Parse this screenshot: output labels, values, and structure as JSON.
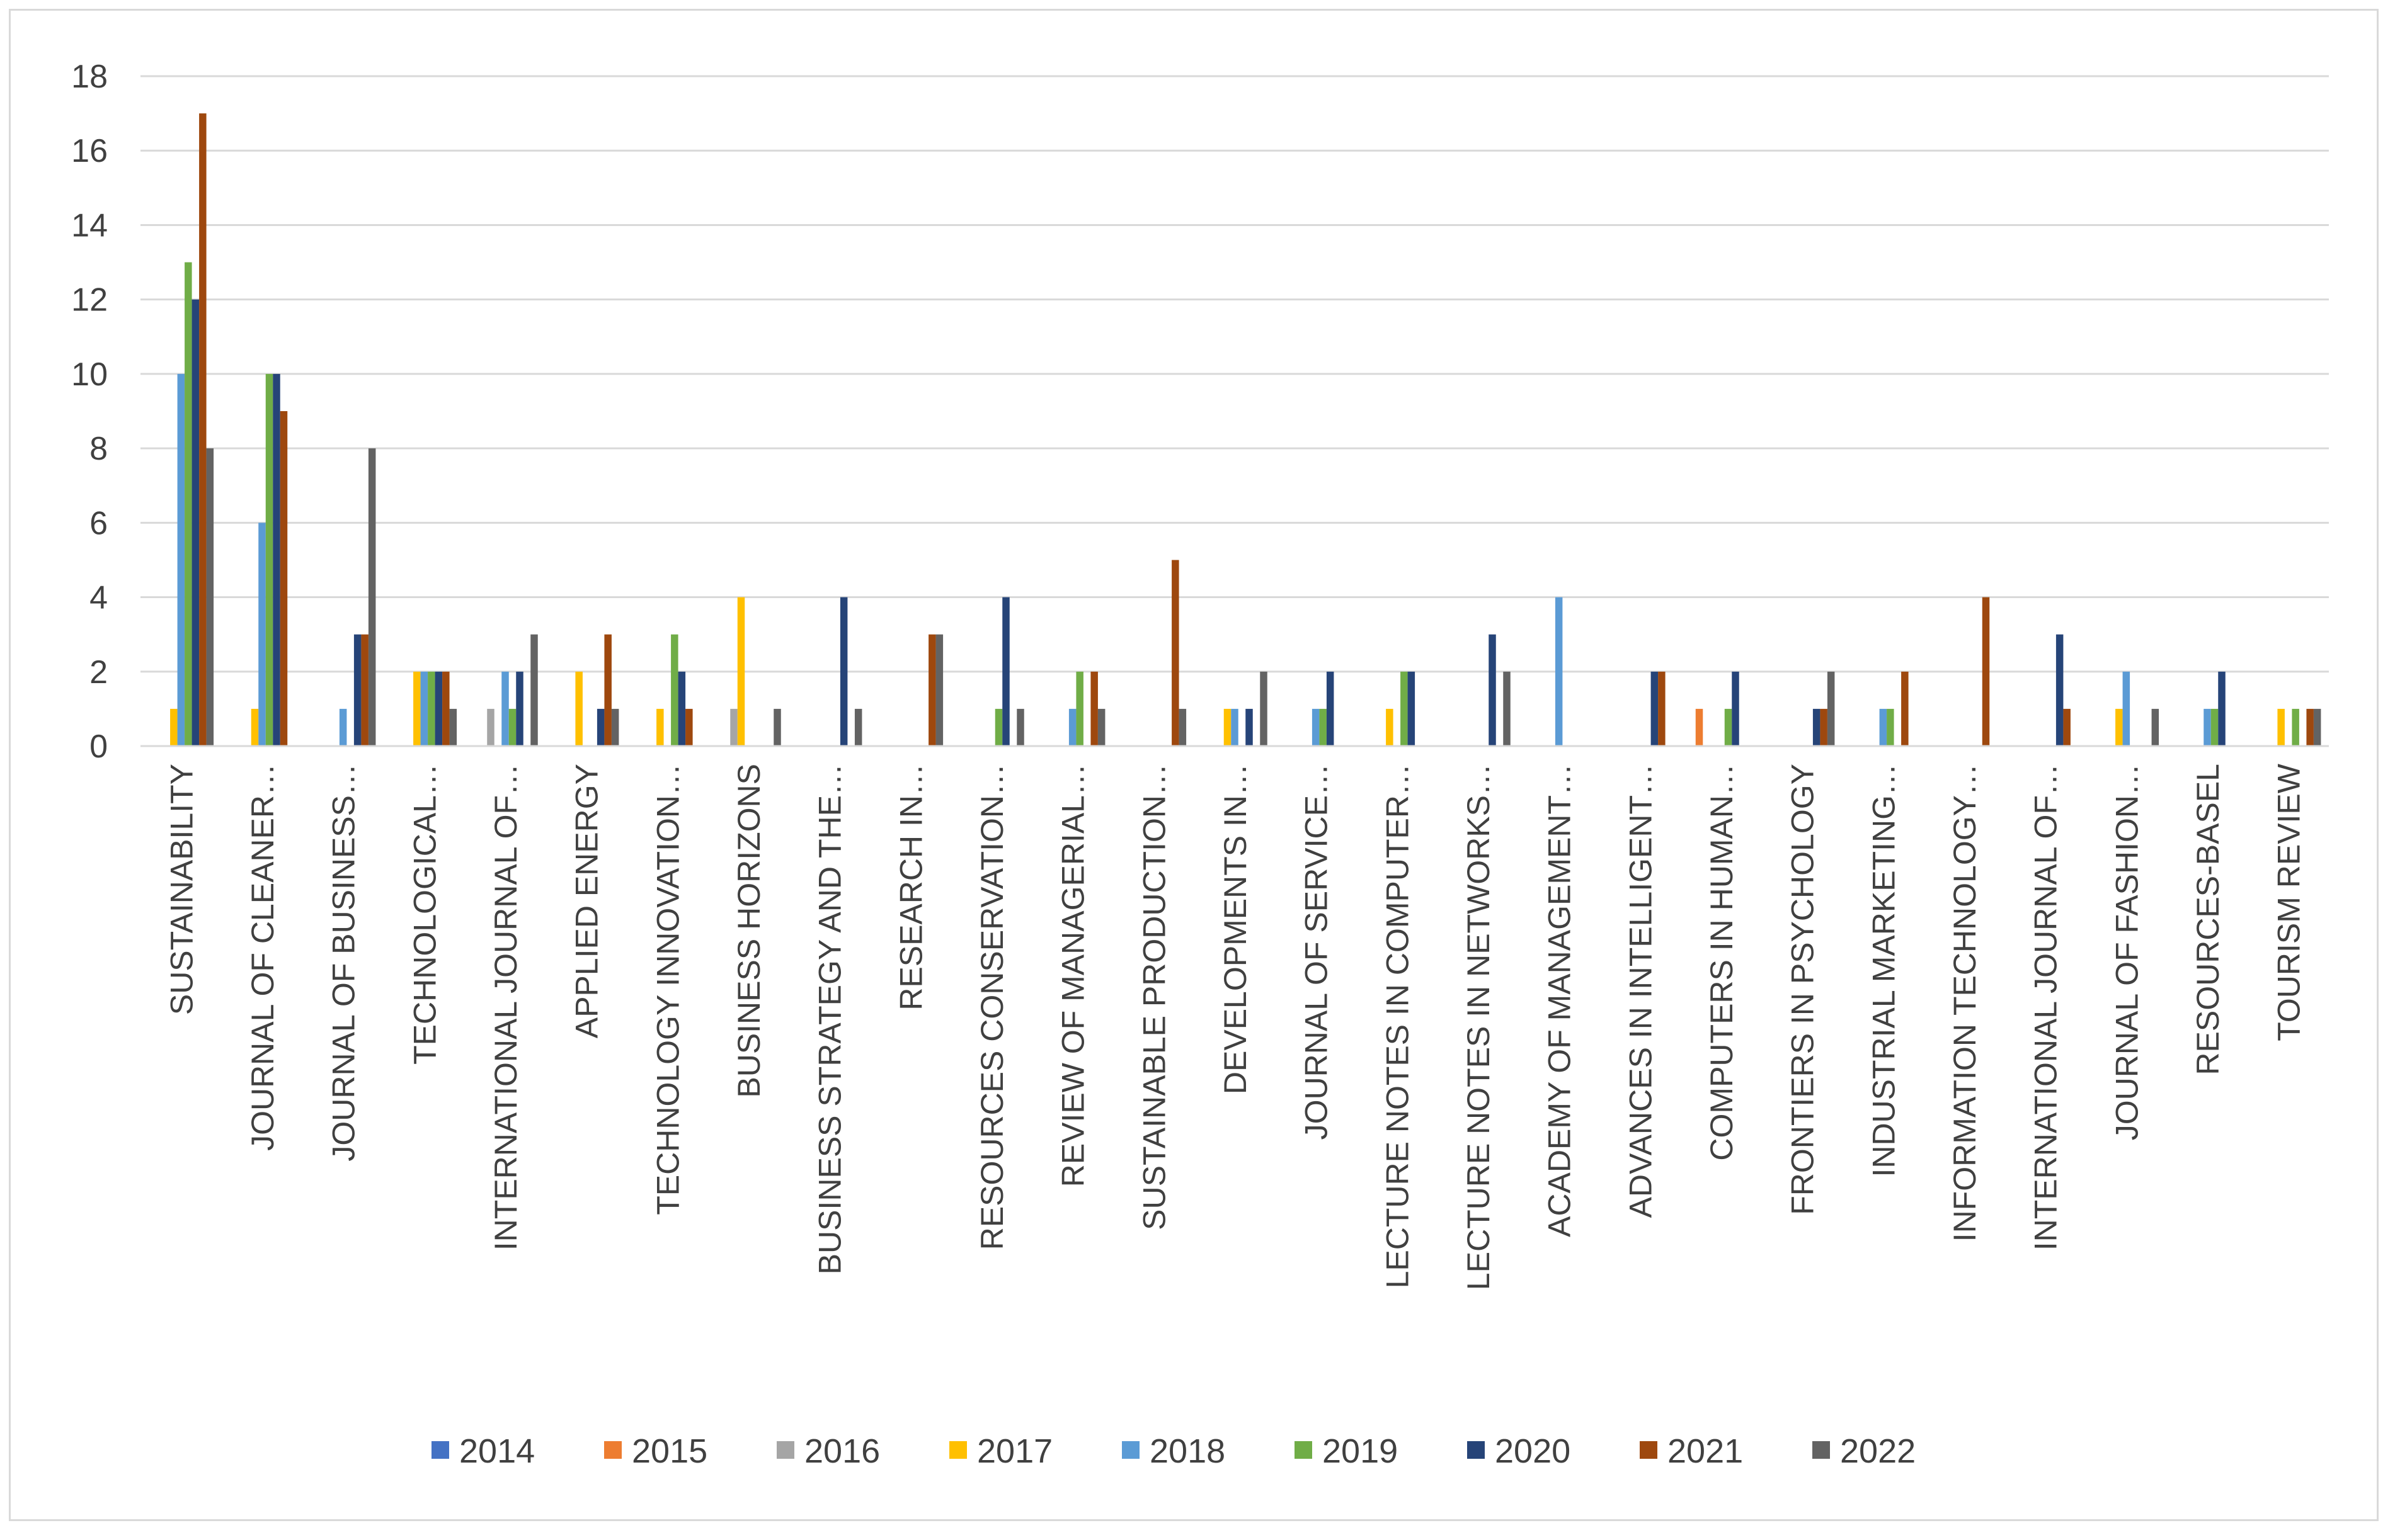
{
  "chart_data": {
    "type": "bar",
    "title": "",
    "xlabel": "",
    "ylabel": "",
    "ylim": [
      0,
      18
    ],
    "yticks": [
      0,
      2,
      4,
      6,
      8,
      10,
      12,
      14,
      16,
      18
    ],
    "grid": true,
    "legend_position": "bottom",
    "categories": [
      "SUSTAINABILITY",
      "JOURNAL OF CLEANER…",
      "JOURNAL OF BUSINESS…",
      "TECHNOLOGICAL…",
      "INTERNATIONAL JOURNAL OF…",
      "APPLIED ENERGY",
      "TECHNOLOGY INNOVATION…",
      "BUSINESS HORIZONS",
      "BUSINESS STRATEGY AND THE…",
      "RESEARCH IN…",
      "RESOURCES CONSERVATION…",
      "REVIEW OF MANAGERIAL…",
      "SUSTAINABLE PRODUCTION…",
      "DEVELOPMENTS IN…",
      "JOURNAL OF SERVICE…",
      "LECTURE NOTES IN COMPUTER…",
      "LECTURE NOTES IN NETWORKS…",
      "ACADEMY OF MANAGEMENT…",
      "ADVANCES IN INTELLIGENT…",
      "COMPUTERS IN HUMAN…",
      "FRONTIERS IN PSYCHOLOGY",
      "INDUSTRIAL MARKETING…",
      "INFORMATION TECHNOLOGY…",
      "INTERNATIONAL JOURNAL OF…",
      "JOURNAL OF FASHION…",
      "RESOURCES-BASEL",
      "TOURISM REVIEW"
    ],
    "series": [
      {
        "name": "2014",
        "color": "#4472c4",
        "values": [
          0,
          0,
          0,
          0,
          0,
          0,
          0,
          0,
          0,
          0,
          0,
          0,
          0,
          0,
          0,
          0,
          0,
          0,
          0,
          0,
          0,
          0,
          0,
          0,
          0,
          0,
          0
        ]
      },
      {
        "name": "2015",
        "color": "#ed7d31",
        "values": [
          0,
          0,
          0,
          0,
          0,
          0,
          0,
          0,
          0,
          0,
          0,
          0,
          0,
          0,
          0,
          0,
          0,
          0,
          0,
          1,
          0,
          0,
          0,
          0,
          0,
          0,
          0
        ]
      },
      {
        "name": "2016",
        "color": "#a5a5a5",
        "values": [
          0,
          0,
          0,
          0,
          1,
          0,
          0,
          1,
          0,
          0,
          0,
          0,
          0,
          0,
          0,
          0,
          0,
          0,
          0,
          0,
          0,
          0,
          0,
          0,
          0,
          0,
          0
        ]
      },
      {
        "name": "2017",
        "color": "#ffc000",
        "values": [
          1,
          1,
          0,
          2,
          0,
          2,
          1,
          4,
          0,
          0,
          0,
          0,
          0,
          1,
          0,
          1,
          0,
          0,
          0,
          0,
          0,
          0,
          0,
          0,
          1,
          0,
          1
        ]
      },
      {
        "name": "2018",
        "color": "#5b9bd5",
        "values": [
          10,
          6,
          1,
          2,
          2,
          0,
          0,
          0,
          0,
          0,
          0,
          1,
          0,
          1,
          1,
          0,
          0,
          4,
          0,
          0,
          0,
          1,
          0,
          0,
          2,
          1,
          0
        ]
      },
      {
        "name": "2019",
        "color": "#70ad47",
        "values": [
          13,
          10,
          0,
          2,
          1,
          0,
          3,
          0,
          0,
          0,
          1,
          2,
          0,
          0,
          1,
          2,
          0,
          0,
          0,
          1,
          0,
          1,
          0,
          0,
          0,
          1,
          1
        ]
      },
      {
        "name": "2020",
        "color": "#264478",
        "values": [
          12,
          10,
          3,
          2,
          2,
          1,
          2,
          0,
          4,
          0,
          4,
          0,
          0,
          1,
          2,
          2,
          3,
          0,
          2,
          2,
          1,
          0,
          0,
          3,
          0,
          2,
          0
        ]
      },
      {
        "name": "2021",
        "color": "#9e480e",
        "values": [
          17,
          9,
          3,
          2,
          0,
          3,
          1,
          0,
          0,
          3,
          0,
          2,
          5,
          0,
          0,
          0,
          0,
          0,
          2,
          0,
          1,
          2,
          4,
          1,
          0,
          0,
          1
        ]
      },
      {
        "name": "2022",
        "color": "#636363",
        "values": [
          8,
          0,
          8,
          1,
          3,
          1,
          0,
          1,
          1,
          3,
          1,
          1,
          1,
          2,
          0,
          0,
          2,
          0,
          0,
          0,
          2,
          0,
          0,
          0,
          1,
          0,
          1
        ]
      }
    ]
  }
}
